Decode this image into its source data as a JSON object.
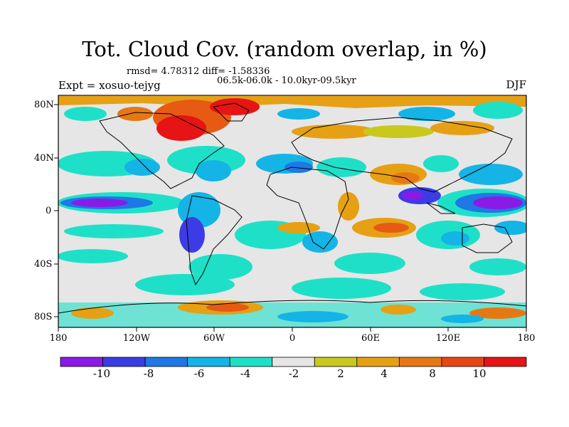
{
  "title": "Tot. Cloud Cov. (random overlap, in %)",
  "stats": "rmsd= 4.78312 diff= -1.58336",
  "expt": "Expt = xosuo-tejyg",
  "period": "06.5k-06.0k - 10.0kyr-09.5kyr",
  "season": "DJF",
  "lat_labels": [
    "80N",
    "40N",
    "0",
    "40S",
    "80S"
  ],
  "lon_labels": [
    "180",
    "120W",
    "60W",
    "0",
    "60E",
    "120E",
    "180"
  ],
  "colorbar": {
    "labels": [
      "-10",
      "-8",
      "-6",
      "-4",
      "-2",
      "2",
      "4",
      "8",
      "10"
    ],
    "colors": [
      "#8a1be6",
      "#3c3ce6",
      "#1e78e6",
      "#14b4e6",
      "#1ee0c8",
      "#e6e6e6",
      "#c8c81e",
      "#e6a014",
      "#e67814",
      "#e64614",
      "#e61414"
    ]
  }
}
